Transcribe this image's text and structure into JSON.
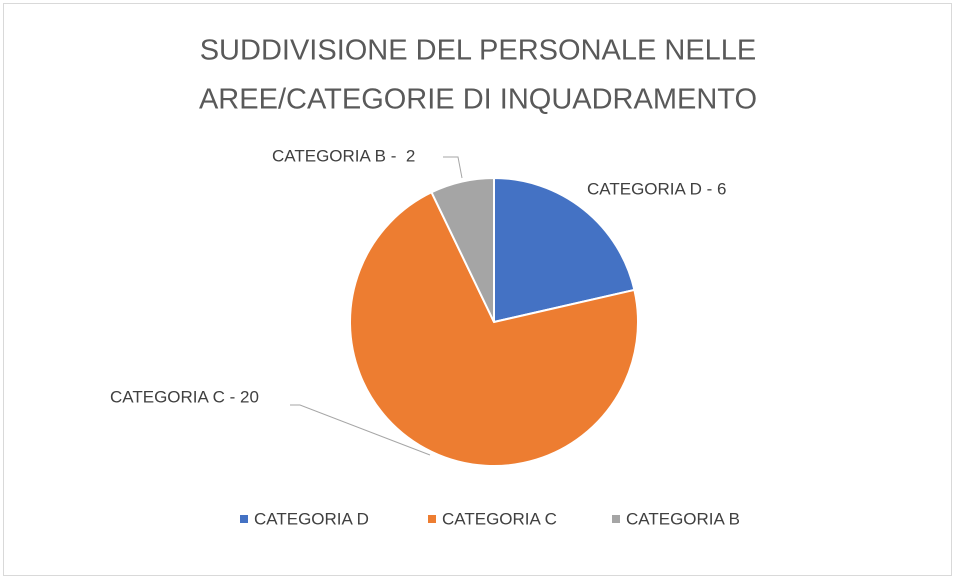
{
  "chart_data": {
    "type": "pie",
    "title": [
      "SUDDIVISIONE DEL PERSONALE NELLE",
      "AREE/CATEGORIE DI INQUADRAMENTO"
    ],
    "categories": [
      "CATEGORIA D",
      "CATEGORIA C",
      "CATEGORIA B"
    ],
    "values": [
      6,
      20,
      2
    ],
    "value_labels": [
      "CATEGORIA D - 6",
      "CATEGORIA C - 20",
      "CATEGORIA B -  2"
    ],
    "colors": [
      "#4472c4",
      "#ed7d31",
      "#a5a5a5"
    ],
    "legend": "bottom"
  }
}
